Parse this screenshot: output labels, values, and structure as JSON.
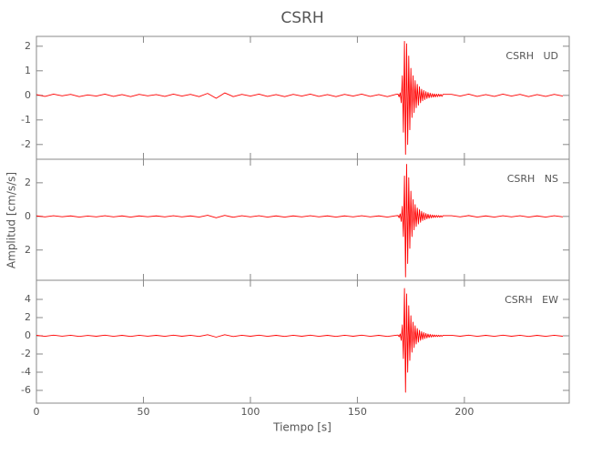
{
  "chart_data": {
    "type": "line",
    "title": "CSRH",
    "x_label": "Tiempo [s]",
    "y_label": "Amplitud [cm/s/s]",
    "x": [
      0,
      4,
      8,
      12,
      16,
      20,
      24,
      28,
      32,
      36,
      40,
      44,
      48,
      52,
      56,
      60,
      64,
      68,
      72,
      76,
      80,
      84,
      88,
      92,
      96,
      100,
      104,
      108,
      112,
      116,
      120,
      124,
      128,
      132,
      136,
      140,
      144,
      148,
      152,
      156,
      160,
      164,
      168,
      169,
      169.5,
      170,
      170.5,
      171,
      171.5,
      172,
      172.5,
      173,
      173.5,
      174,
      174.5,
      175,
      175.5,
      176,
      176.5,
      177,
      177.5,
      178,
      178.5,
      179,
      179.5,
      180,
      180.5,
      181,
      181.5,
      182,
      182.5,
      183,
      183.5,
      184,
      184.5,
      185,
      185.5,
      186,
      186.5,
      187,
      187.5,
      188,
      188.5,
      189,
      189.5,
      190,
      194,
      198,
      202,
      206,
      210,
      214,
      218,
      222,
      226,
      230,
      234,
      238,
      242,
      246
    ],
    "xlim": [
      0,
      249
    ],
    "xticks": [
      0,
      50,
      100,
      150,
      200
    ],
    "panels": [
      {
        "annotation": "CSRH   UD",
        "ylim": [
          -2.6,
          2.4
        ],
        "yticks": [
          -2,
          -1,
          0,
          1,
          2
        ],
        "series": [
          {
            "color": "#ff0000",
            "values": [
              0.03,
              -0.04,
              0.05,
              -0.02,
              0.04,
              -0.05,
              0.02,
              -0.03,
              0.05,
              -0.04,
              0.03,
              -0.05,
              0.04,
              -0.02,
              0.03,
              -0.04,
              0.05,
              -0.03,
              0.04,
              -0.05,
              0.08,
              -0.12,
              0.1,
              -0.05,
              0.04,
              -0.03,
              0.05,
              -0.04,
              0.03,
              -0.05,
              0.04,
              -0.03,
              0.05,
              -0.04,
              0.03,
              -0.05,
              0.04,
              -0.03,
              0.05,
              -0.04,
              0.03,
              -0.05,
              0.04,
              0.05,
              -0.06,
              0.1,
              -0.3,
              0.8,
              -1.5,
              2.2,
              -2.4,
              2.1,
              -2.0,
              1.6,
              -1.4,
              1.1,
              -0.9,
              0.8,
              -0.7,
              0.6,
              -0.5,
              0.45,
              -0.4,
              0.35,
              -0.3,
              0.25,
              -0.22,
              0.2,
              -0.17,
              0.15,
              -0.13,
              0.12,
              -0.1,
              0.09,
              -0.08,
              0.07,
              -0.07,
              0.06,
              -0.06,
              0.05,
              -0.05,
              0.05,
              -0.04,
              0.04,
              -0.04,
              0.04,
              0.04,
              -0.03,
              0.05,
              -0.04,
              0.03,
              -0.04,
              0.05,
              -0.03,
              0.04,
              -0.05,
              0.03,
              -0.04,
              0.04,
              -0.03
            ]
          }
        ]
      },
      {
        "annotation": "CSRH   NS",
        "ylim": [
          -3.8,
          3.4
        ],
        "yticks": [
          {
            "value": -2,
            "label": "2"
          },
          0,
          2
        ],
        "series": [
          {
            "color": "#ff0000",
            "values": [
              0.03,
              -0.03,
              0.04,
              -0.02,
              0.03,
              -0.04,
              0.02,
              -0.03,
              0.04,
              -0.03,
              0.03,
              -0.04,
              0.03,
              -0.02,
              0.03,
              -0.03,
              0.04,
              -0.03,
              0.03,
              -0.04,
              0.07,
              -0.08,
              0.06,
              -0.05,
              0.04,
              -0.03,
              0.04,
              -0.04,
              0.03,
              -0.04,
              0.03,
              -0.03,
              0.04,
              -0.03,
              0.03,
              -0.04,
              0.03,
              -0.03,
              0.04,
              -0.03,
              0.03,
              -0.04,
              0.04,
              0.05,
              -0.08,
              0.15,
              -0.3,
              0.6,
              -1.2,
              2.4,
              -3.6,
              3.1,
              -2.8,
              2.3,
              -1.9,
              1.5,
              -1.2,
              1.0,
              -0.8,
              0.7,
              -0.6,
              0.5,
              -0.45,
              0.4,
              -0.35,
              0.3,
              -0.25,
              0.22,
              -0.2,
              0.17,
              -0.15,
              0.13,
              -0.12,
              0.1,
              -0.09,
              0.08,
              -0.07,
              0.07,
              -0.06,
              0.06,
              -0.05,
              0.05,
              -0.05,
              0.04,
              -0.04,
              0.04,
              0.04,
              -0.03,
              0.05,
              -0.04,
              0.03,
              -0.04,
              0.04,
              -0.03,
              0.04,
              -0.04,
              0.03,
              -0.04,
              0.04,
              -0.03
            ]
          }
        ]
      },
      {
        "annotation": "CSRH   EW",
        "ylim": [
          -7.4,
          6.1
        ],
        "yticks": [
          -6,
          -4,
          -2,
          0,
          2,
          4
        ],
        "series": [
          {
            "color": "#ff0000",
            "values": [
              0.05,
              -0.06,
              0.07,
              -0.04,
              0.06,
              -0.07,
              0.04,
              -0.05,
              0.07,
              -0.06,
              0.05,
              -0.07,
              0.06,
              -0.04,
              0.05,
              -0.06,
              0.07,
              -0.05,
              0.06,
              -0.07,
              0.12,
              -0.15,
              0.12,
              -0.08,
              0.06,
              -0.05,
              0.07,
              -0.06,
              0.05,
              -0.07,
              0.06,
              -0.05,
              0.07,
              -0.06,
              0.05,
              -0.07,
              0.06,
              -0.05,
              0.07,
              -0.06,
              0.05,
              -0.07,
              0.06,
              0.08,
              -0.1,
              0.2,
              -0.5,
              1.2,
              -2.5,
              5.2,
              -6.2,
              4.6,
              -4.0,
              3.3,
              -2.7,
              2.2,
              -1.8,
              1.5,
              -1.3,
              1.1,
              -0.9,
              0.8,
              -0.7,
              0.6,
              -0.5,
              0.45,
              -0.4,
              0.35,
              -0.3,
              0.27,
              -0.24,
              0.2,
              -0.18,
              0.16,
              -0.14,
              0.12,
              -0.11,
              0.1,
              -0.09,
              0.08,
              -0.08,
              0.07,
              -0.07,
              0.06,
              -0.06,
              0.06,
              0.06,
              -0.05,
              0.07,
              -0.06,
              0.05,
              -0.06,
              0.07,
              -0.05,
              0.06,
              -0.07,
              0.05,
              -0.06,
              0.06,
              -0.05
            ]
          }
        ]
      }
    ]
  }
}
